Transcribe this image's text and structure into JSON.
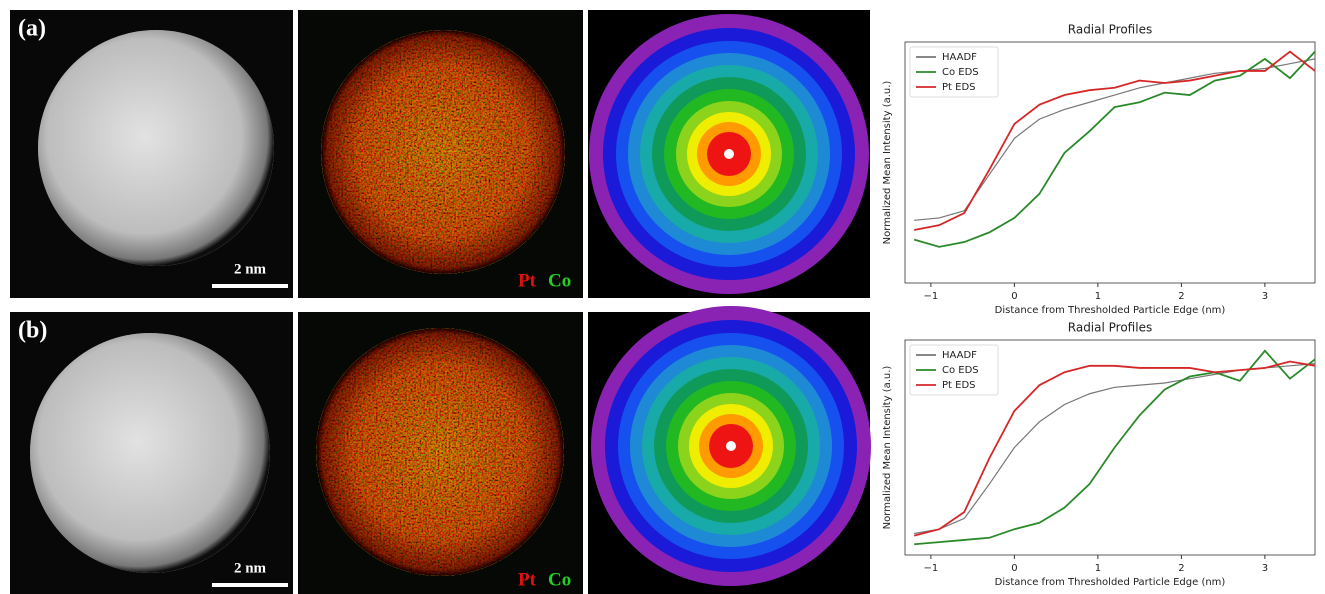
{
  "panels": [
    {
      "label": "(a)",
      "scale_bar": "2 nm",
      "element_1": "Pt",
      "element_2": "Co"
    },
    {
      "label": "(b)",
      "scale_bar": "2 nm",
      "element_1": "Pt",
      "element_2": "Co"
    }
  ],
  "chart_data": [
    {
      "type": "line",
      "title": "Radial Profiles",
      "x_label": "Distance from Thresholded Particle Edge (nm)",
      "y_label": "Normalized Mean Intensity (a.u.)",
      "x": [
        -1.2,
        -0.9,
        -0.6,
        -0.3,
        0,
        0.3,
        0.6,
        0.9,
        1.2,
        1.5,
        1.8,
        2.1,
        2.4,
        2.7,
        3.0,
        3.3,
        3.6
      ],
      "series": [
        {
          "name": "HAADF",
          "color": "#777777",
          "values": [
            0.26,
            0.27,
            0.3,
            0.45,
            0.6,
            0.68,
            0.72,
            0.75,
            0.78,
            0.81,
            0.83,
            0.85,
            0.87,
            0.88,
            0.89,
            0.91,
            0.93
          ]
        },
        {
          "name": "Co EDS",
          "color": "#2a8a2a",
          "values": [
            0.18,
            0.15,
            0.17,
            0.21,
            0.27,
            0.37,
            0.54,
            0.63,
            0.73,
            0.75,
            0.79,
            0.78,
            0.84,
            0.86,
            0.93,
            0.85,
            0.96
          ]
        },
        {
          "name": "Pt EDS",
          "color": "#d62728",
          "values": [
            0.22,
            0.24,
            0.29,
            0.47,
            0.66,
            0.74,
            0.78,
            0.8,
            0.81,
            0.84,
            0.83,
            0.84,
            0.86,
            0.88,
            0.88,
            0.96,
            0.88
          ]
        }
      ],
      "xlim": [
        -1.31,
        3.6
      ],
      "ylim": [
        0,
        1
      ],
      "xticks": [
        {
          "value": -1,
          "label": "−1"
        },
        0,
        1,
        2,
        3
      ],
      "legend": "upper-left"
    },
    {
      "type": "line",
      "title": "Radial Profiles",
      "x_label": "Distance from Thresholded Particle Edge (nm)",
      "y_label": "Normalized Mean Intensity (a.u.)",
      "x": [
        -1.2,
        -0.9,
        -0.6,
        -0.3,
        0,
        0.3,
        0.6,
        0.9,
        1.2,
        1.5,
        1.8,
        2.1,
        2.4,
        2.7,
        3.0,
        3.3,
        3.6
      ],
      "series": [
        {
          "name": "HAADF",
          "color": "#777777",
          "values": [
            0.05,
            0.07,
            0.12,
            0.28,
            0.45,
            0.57,
            0.65,
            0.7,
            0.73,
            0.74,
            0.75,
            0.77,
            0.79,
            0.81,
            0.82,
            0.83,
            0.84
          ]
        },
        {
          "name": "Co EDS",
          "color": "#2a8a2a",
          "values": [
            0.0,
            0.01,
            0.02,
            0.03,
            0.07,
            0.1,
            0.17,
            0.28,
            0.45,
            0.6,
            0.72,
            0.78,
            0.8,
            0.76,
            0.9,
            0.77,
            0.86
          ]
        },
        {
          "name": "Pt EDS",
          "color": "#d62728",
          "values": [
            0.04,
            0.07,
            0.15,
            0.4,
            0.62,
            0.74,
            0.8,
            0.83,
            0.83,
            0.82,
            0.82,
            0.82,
            0.8,
            0.81,
            0.82,
            0.85,
            0.83
          ]
        }
      ],
      "xlim": [
        -1.31,
        3.6
      ],
      "ylim": [
        -0.05,
        0.95
      ],
      "xticks": [
        {
          "value": -1,
          "label": "−1"
        },
        0,
        1,
        2,
        3
      ],
      "legend": "upper-left"
    }
  ]
}
